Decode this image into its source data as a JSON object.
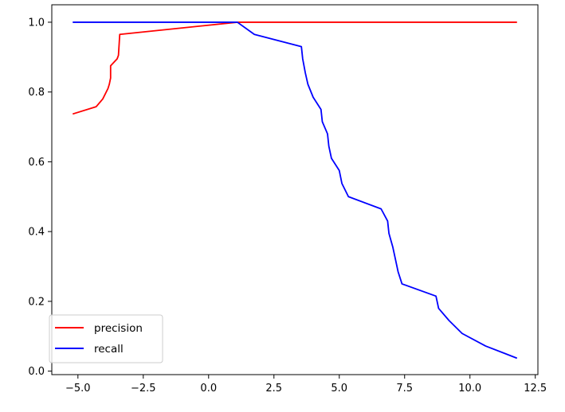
{
  "chart_data": {
    "type": "line",
    "title": "",
    "xlabel": "",
    "ylabel": "",
    "xlim": [
      -6.0,
      12.6
    ],
    "ylim": [
      -0.01,
      1.05
    ],
    "xticks": [
      -5.0,
      -2.5,
      0.0,
      2.5,
      5.0,
      7.5,
      10.0,
      12.5
    ],
    "xtick_labels": [
      "−5.0",
      "−2.5",
      "0.0",
      "2.5",
      "5.0",
      "7.5",
      "10.0",
      "12.5"
    ],
    "yticks": [
      0.0,
      0.2,
      0.4,
      0.6,
      0.8,
      1.0
    ],
    "ytick_labels": [
      "0.0",
      "0.2",
      "0.4",
      "0.6",
      "0.8",
      "1.0"
    ],
    "grid": false,
    "legend": {
      "placement": "lower-left"
    },
    "series": [
      {
        "name": "precision",
        "color": "#ff0000",
        "points": [
          [
            -5.2,
            0.737
          ],
          [
            -4.3,
            0.758
          ],
          [
            -4.05,
            0.78
          ],
          [
            -3.85,
            0.81
          ],
          [
            -3.8,
            0.822
          ],
          [
            -3.75,
            0.84
          ],
          [
            -3.75,
            0.875
          ],
          [
            -3.5,
            0.895
          ],
          [
            -3.45,
            0.905
          ],
          [
            -3.4,
            0.965
          ],
          [
            1.1,
            1.0
          ],
          [
            11.8,
            1.0
          ]
        ]
      },
      {
        "name": "recall",
        "color": "#0000ff",
        "points": [
          [
            -5.2,
            1.0
          ],
          [
            1.1,
            1.0
          ],
          [
            1.75,
            0.965
          ],
          [
            3.55,
            0.93
          ],
          [
            3.6,
            0.895
          ],
          [
            3.7,
            0.855
          ],
          [
            3.8,
            0.822
          ],
          [
            4.0,
            0.785
          ],
          [
            4.3,
            0.75
          ],
          [
            4.35,
            0.715
          ],
          [
            4.55,
            0.68
          ],
          [
            4.6,
            0.645
          ],
          [
            4.7,
            0.61
          ],
          [
            5.0,
            0.575
          ],
          [
            5.1,
            0.538
          ],
          [
            5.35,
            0.5
          ],
          [
            6.6,
            0.465
          ],
          [
            6.85,
            0.43
          ],
          [
            6.9,
            0.395
          ],
          [
            7.05,
            0.355
          ],
          [
            7.15,
            0.32
          ],
          [
            7.25,
            0.285
          ],
          [
            7.4,
            0.25
          ],
          [
            8.7,
            0.215
          ],
          [
            8.8,
            0.18
          ],
          [
            9.2,
            0.145
          ],
          [
            9.7,
            0.108
          ],
          [
            10.6,
            0.072
          ],
          [
            11.8,
            0.037
          ]
        ]
      }
    ]
  }
}
